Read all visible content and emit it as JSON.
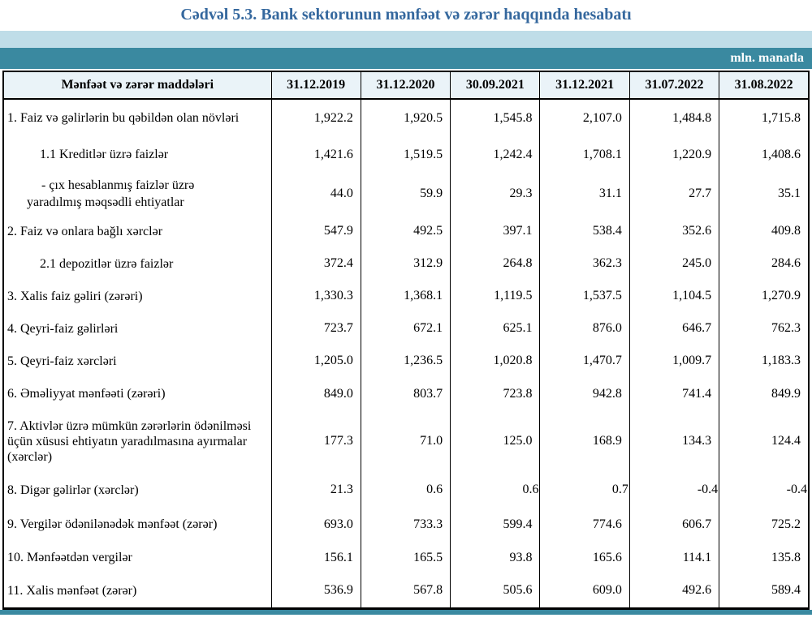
{
  "title": "Cədvəl 5.3. Bank sektorunun mənfəət və zərər haqqında hesabatı",
  "unit_label": "mln. manatla",
  "colors": {
    "title_blue": "#35689e",
    "band_light": "#bfdde8",
    "band_teal": "#3a89a0",
    "header_bg": "#eaf3f8",
    "border": "#000000"
  },
  "chart_data": {
    "type": "table",
    "title": "Cədvəl 5.3. Bank sektorunun mənfəət və zərər haqqında hesabatı",
    "unit": "mln. manatla",
    "columns": [
      "Mənfəət və zərər maddələri",
      "31.12.2019",
      "31.12.2020",
      "30.09.2021",
      "31.12.2021",
      "31.07.2022",
      "31.08.2022"
    ],
    "rows": [
      {
        "label": "1. Faiz və gəlirlərin bu qəbildən olan növləri",
        "values": [
          "1,922.2",
          "1,920.5",
          "1,545.8",
          "2,107.0",
          "1,484.8",
          "1,715.8"
        ]
      },
      {
        "label": "1.1 Kreditlər üzrə faizlər",
        "values": [
          "1,421.6",
          "1,519.5",
          "1,242.4",
          "1,708.1",
          "1,220.9",
          "1,408.6"
        ]
      },
      {
        "label": "-  çıx hesablanmış faizlər üzrə\nyaradılmış məqsədli ehtiyatlar",
        "values": [
          "44.0",
          "59.9",
          "29.3",
          "31.1",
          "27.7",
          "35.1"
        ]
      },
      {
        "label": "2. Faiz və onlara bağlı xərclər",
        "values": [
          "547.9",
          "492.5",
          "397.1",
          "538.4",
          "352.6",
          "409.8"
        ]
      },
      {
        "label": "2.1 depozitlər üzrə faizlər",
        "values": [
          "372.4",
          "312.9",
          "264.8",
          "362.3",
          "245.0",
          "284.6"
        ]
      },
      {
        "label": "3. Xalis faiz gəliri (zərəri)",
        "values": [
          "1,330.3",
          "1,368.1",
          "1,119.5",
          "1,537.5",
          "1,104.5",
          "1,270.9"
        ]
      },
      {
        "label": "4. Qeyri-faiz gəlirləri",
        "values": [
          "723.7",
          "672.1",
          "625.1",
          "876.0",
          "646.7",
          "762.3"
        ]
      },
      {
        "label": "5. Qeyri-faiz xərcləri",
        "values": [
          "1,205.0",
          "1,236.5",
          "1,020.8",
          "1,470.7",
          "1,009.7",
          "1,183.3"
        ]
      },
      {
        "label": "6. Əməliyyat mənfəəti (zərəri)",
        "values": [
          "849.0",
          "803.7",
          "723.8",
          "942.8",
          "741.4",
          "849.9"
        ]
      },
      {
        "label": "7. Aktivlər üzrə mümkün zərərlərin ödənilməsi üçün xüsusi ehtiyatın yaradılmasına ayırmalar (xərclər)",
        "values": [
          "177.3",
          "71.0",
          "125.0",
          "168.9",
          "134.3",
          "124.4"
        ]
      },
      {
        "label": "8. Digər gəlirlər (xərclər)",
        "values": [
          "21.3",
          "0.6",
          "0.6",
          "0.7",
          "-0.4",
          "-0.4"
        ]
      },
      {
        "label": "9. Vergilər ödənilənədək mənfəət (zərər)",
        "values": [
          "693.0",
          "733.3",
          "599.4",
          "774.6",
          "606.7",
          "725.2"
        ]
      },
      {
        "label": "10. Mənfəətdən vergilər",
        "values": [
          "156.1",
          "165.5",
          "93.8",
          "165.6",
          "114.1",
          "135.8"
        ]
      },
      {
        "label": "11. Xalis mənfəət (zərər)",
        "values": [
          "536.9",
          "567.8",
          "505.6",
          "609.0",
          "492.6",
          "589.4"
        ]
      }
    ]
  }
}
